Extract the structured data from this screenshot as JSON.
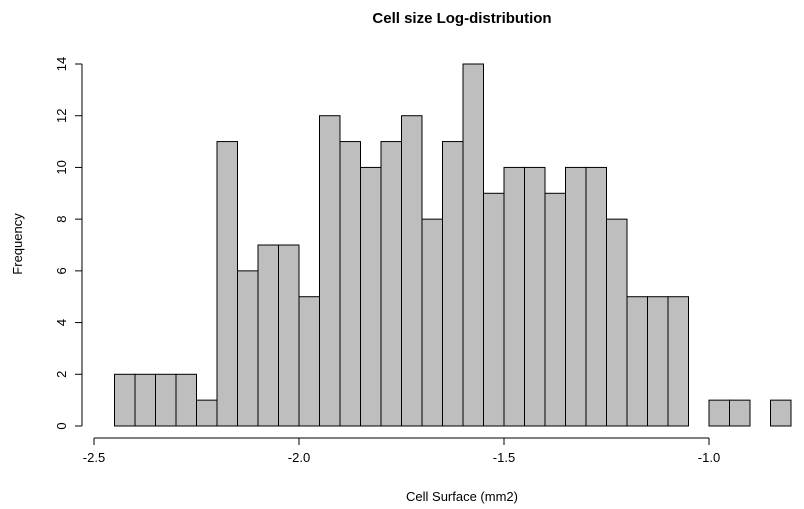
{
  "chart_data": {
    "type": "bar",
    "subtype": "histogram",
    "title": "Cell size Log-distribution",
    "xlabel": "Cell Surface (mm2)",
    "ylabel": "Frequency",
    "bin_width": 0.05,
    "bins": [
      {
        "start": -2.45,
        "end": -2.4,
        "count": 2
      },
      {
        "start": -2.4,
        "end": -2.35,
        "count": 2
      },
      {
        "start": -2.35,
        "end": -2.3,
        "count": 2
      },
      {
        "start": -2.3,
        "end": -2.25,
        "count": 2
      },
      {
        "start": -2.25,
        "end": -2.2,
        "count": 1
      },
      {
        "start": -2.2,
        "end": -2.15,
        "count": 11
      },
      {
        "start": -2.15,
        "end": -2.1,
        "count": 6
      },
      {
        "start": -2.1,
        "end": -2.05,
        "count": 7
      },
      {
        "start": -2.05,
        "end": -2.0,
        "count": 7
      },
      {
        "start": -2.0,
        "end": -1.95,
        "count": 5
      },
      {
        "start": -1.95,
        "end": -1.9,
        "count": 12
      },
      {
        "start": -1.9,
        "end": -1.85,
        "count": 11
      },
      {
        "start": -1.85,
        "end": -1.8,
        "count": 10
      },
      {
        "start": -1.8,
        "end": -1.75,
        "count": 11
      },
      {
        "start": -1.75,
        "end": -1.7,
        "count": 12
      },
      {
        "start": -1.7,
        "end": -1.65,
        "count": 8
      },
      {
        "start": -1.65,
        "end": -1.6,
        "count": 11
      },
      {
        "start": -1.6,
        "end": -1.55,
        "count": 14
      },
      {
        "start": -1.55,
        "end": -1.5,
        "count": 9
      },
      {
        "start": -1.5,
        "end": -1.45,
        "count": 10
      },
      {
        "start": -1.45,
        "end": -1.4,
        "count": 10
      },
      {
        "start": -1.4,
        "end": -1.35,
        "count": 9
      },
      {
        "start": -1.35,
        "end": -1.3,
        "count": 10
      },
      {
        "start": -1.3,
        "end": -1.25,
        "count": 10
      },
      {
        "start": -1.25,
        "end": -1.2,
        "count": 8
      },
      {
        "start": -1.2,
        "end": -1.15,
        "count": 5
      },
      {
        "start": -1.15,
        "end": -1.1,
        "count": 5
      },
      {
        "start": -1.1,
        "end": -1.05,
        "count": 5
      },
      {
        "start": -1.05,
        "end": -1.0,
        "count": 0
      },
      {
        "start": -1.0,
        "end": -0.95,
        "count": 1
      },
      {
        "start": -0.95,
        "end": -0.9,
        "count": 1
      },
      {
        "start": -0.9,
        "end": -0.85,
        "count": 0
      },
      {
        "start": -0.85,
        "end": -0.8,
        "count": 1
      }
    ],
    "xlim": [
      -2.5,
      -0.8
    ],
    "ylim": [
      0,
      14
    ],
    "x_ticks": [
      -2.5,
      -2.0,
      -1.5,
      -1.0
    ],
    "x_tick_labels": [
      "-2.5",
      "-2.0",
      "-1.5",
      "-1.0"
    ],
    "y_ticks": [
      0,
      2,
      4,
      6,
      8,
      10,
      12,
      14
    ],
    "y_tick_labels": [
      "0",
      "2",
      "4",
      "6",
      "8",
      "10",
      "12",
      "14"
    ],
    "bar_color": "#bebebe",
    "grid": false,
    "legend": "none"
  }
}
